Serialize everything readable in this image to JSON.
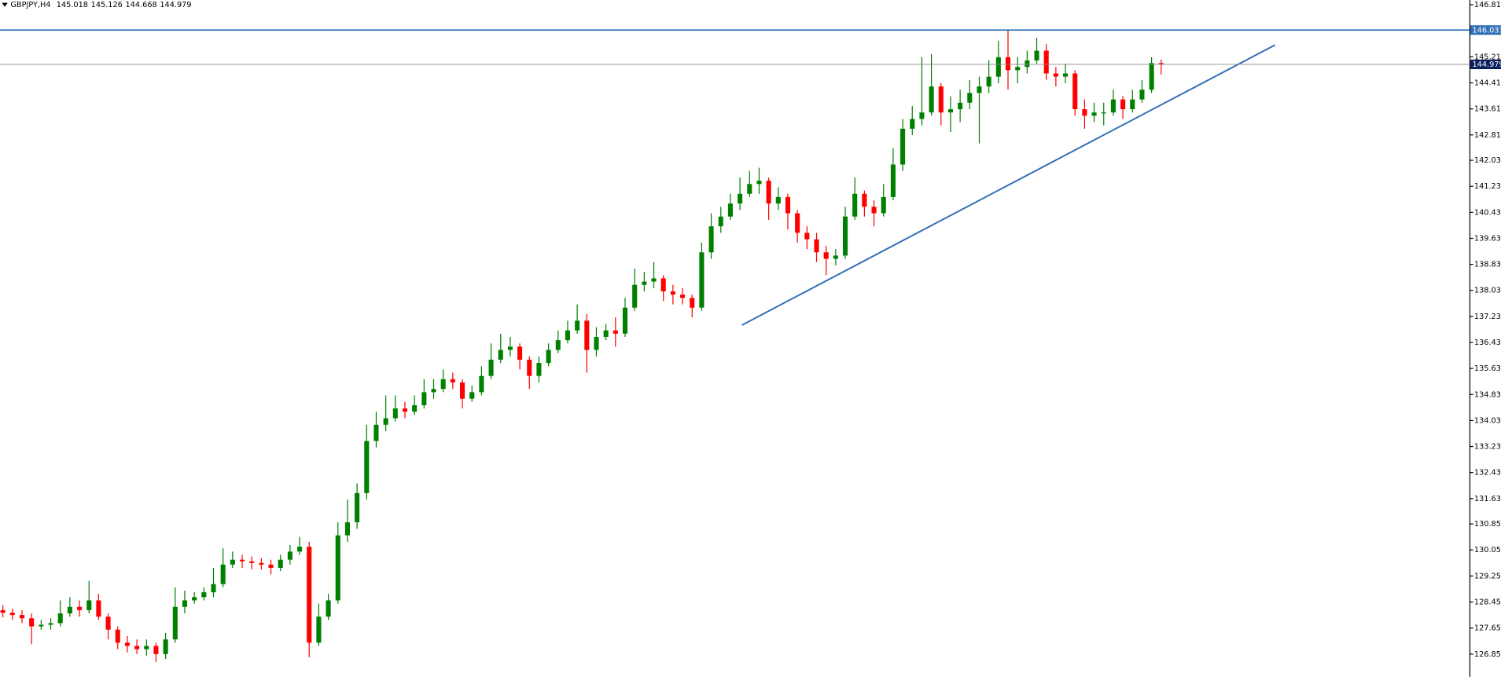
{
  "chart_data": {
    "type": "candlestick",
    "title": "GBPJPY,H4",
    "title_values": [
      145.018,
      145.126,
      144.668,
      144.979
    ],
    "up_color": "#008000",
    "down_color": "#ff0000",
    "ylim": [
      126.145,
      146.957
    ],
    "yticks": [
      {
        "value": 146.81,
        "label": "146.810"
      },
      {
        "value": 145.21,
        "label": "145.210"
      },
      {
        "value": 144.41,
        "label": "144.410"
      },
      {
        "value": 143.61,
        "label": "143.610"
      },
      {
        "value": 142.81,
        "label": "142.810"
      },
      {
        "value": 142.03,
        "label": "142.030"
      },
      {
        "value": 141.23,
        "label": "141.230"
      },
      {
        "value": 140.43,
        "label": "140.430"
      },
      {
        "value": 139.63,
        "label": "139.630"
      },
      {
        "value": 138.83,
        "label": "138.830"
      },
      {
        "value": 138.03,
        "label": "138.030"
      },
      {
        "value": 137.23,
        "label": "137.230"
      },
      {
        "value": 136.43,
        "label": "136.430"
      },
      {
        "value": 135.63,
        "label": "135.630"
      },
      {
        "value": 134.83,
        "label": "134.830"
      },
      {
        "value": 134.03,
        "label": "134.030"
      },
      {
        "value": 133.23,
        "label": "133.230"
      },
      {
        "value": 132.43,
        "label": "132.430"
      },
      {
        "value": 131.63,
        "label": "131.630"
      },
      {
        "value": 130.85,
        "label": "130.850"
      },
      {
        "value": 130.05,
        "label": "130.050"
      },
      {
        "value": 129.25,
        "label": "129.250"
      },
      {
        "value": 128.45,
        "label": "128.450"
      },
      {
        "value": 127.65,
        "label": "127.650"
      },
      {
        "value": 126.85,
        "label": "126.850"
      }
    ],
    "hline": {
      "value": 146.033,
      "color": "#2f6fb5"
    },
    "current_price": 144.979,
    "open": [
      128.2,
      128.12,
      128.05,
      127.95,
      127.7,
      127.75,
      127.8,
      128.1,
      128.3,
      128.2,
      128.5,
      128.0,
      127.6,
      127.2,
      127.1,
      127.0,
      127.1,
      126.85,
      127.3,
      128.3,
      128.5,
      128.6,
      128.75,
      129.0,
      129.6,
      129.75,
      129.7,
      129.65,
      129.6,
      129.5,
      129.75,
      130.0,
      130.15,
      127.2,
      128.0,
      128.5,
      130.5,
      130.9,
      131.8,
      133.4,
      133.9,
      134.1,
      134.4,
      134.3,
      134.5,
      134.9,
      135.0,
      135.3,
      135.2,
      134.7,
      134.9,
      135.4,
      135.9,
      136.2,
      136.3,
      135.9,
      135.4,
      135.8,
      136.2,
      136.5,
      136.8,
      137.1,
      136.2,
      136.6,
      136.8,
      136.7,
      137.5,
      138.2,
      138.3,
      138.4,
      138.0,
      137.9,
      137.8,
      137.5,
      139.2,
      140.0,
      140.3,
      140.7,
      141.0,
      141.3,
      141.4,
      140.7,
      140.9,
      140.4,
      139.8,
      139.6,
      139.2,
      139.0,
      139.1,
      140.3,
      141.0,
      140.6,
      140.4,
      140.9,
      141.9,
      143.0,
      143.3,
      143.5,
      144.3,
      143.5,
      143.6,
      143.8,
      144.1,
      144.3,
      144.6,
      145.2,
      144.8,
      144.9,
      145.1,
      145.4,
      144.7,
      144.6,
      144.7,
      143.6,
      143.4,
      143.5,
      143.5,
      143.9,
      143.6,
      143.9,
      144.2,
      145.018
    ],
    "high": [
      128.35,
      128.25,
      128.2,
      128.1,
      127.9,
      127.95,
      128.5,
      128.6,
      128.5,
      129.1,
      128.7,
      128.1,
      127.7,
      127.4,
      127.3,
      127.3,
      127.2,
      127.5,
      128.9,
      128.8,
      128.75,
      128.9,
      129.5,
      130.1,
      130.0,
      129.9,
      129.85,
      129.8,
      129.75,
      129.9,
      130.2,
      130.45,
      130.3,
      128.4,
      128.7,
      130.9,
      131.6,
      132.1,
      133.9,
      134.3,
      134.8,
      134.8,
      134.6,
      134.8,
      135.3,
      135.3,
      135.6,
      135.5,
      135.3,
      135.1,
      135.7,
      136.4,
      136.7,
      136.6,
      136.4,
      136.0,
      136.0,
      136.4,
      136.8,
      137.1,
      137.6,
      137.3,
      136.9,
      137.0,
      137.2,
      137.8,
      138.7,
      138.6,
      138.9,
      138.5,
      138.2,
      138.1,
      137.9,
      139.5,
      140.4,
      140.6,
      141.0,
      141.5,
      141.7,
      141.8,
      141.5,
      141.2,
      141.0,
      140.5,
      140.0,
      139.8,
      139.4,
      139.3,
      140.6,
      141.5,
      141.1,
      140.8,
      141.3,
      142.4,
      143.3,
      143.7,
      145.2,
      145.3,
      144.4,
      144.0,
      144.2,
      144.5,
      144.6,
      145.1,
      145.7,
      146.03,
      145.2,
      145.4,
      145.8,
      145.6,
      144.9,
      145.0,
      144.8,
      143.9,
      143.8,
      143.8,
      144.2,
      144.0,
      144.2,
      144.5,
      145.2,
      145.126
    ],
    "low": [
      127.98,
      127.9,
      127.8,
      127.15,
      127.6,
      127.6,
      127.7,
      128.0,
      128.0,
      128.1,
      127.9,
      127.3,
      127.0,
      126.9,
      126.85,
      126.8,
      126.6,
      126.7,
      127.2,
      128.1,
      128.4,
      128.5,
      128.6,
      128.9,
      129.5,
      129.5,
      129.45,
      129.45,
      129.3,
      129.4,
      129.6,
      129.9,
      126.75,
      127.1,
      127.9,
      128.4,
      130.3,
      130.7,
      131.6,
      133.2,
      133.7,
      134.0,
      134.1,
      134.2,
      134.4,
      134.7,
      134.9,
      135.0,
      134.4,
      134.6,
      134.8,
      135.3,
      135.8,
      136.0,
      135.6,
      135.0,
      135.2,
      135.7,
      136.1,
      136.4,
      136.7,
      135.5,
      136.0,
      136.5,
      136.3,
      136.6,
      137.4,
      138.0,
      138.1,
      137.7,
      137.6,
      137.6,
      137.2,
      137.4,
      139.0,
      139.8,
      140.2,
      140.5,
      140.9,
      141.0,
      140.2,
      140.5,
      139.9,
      139.5,
      139.3,
      138.9,
      138.5,
      138.8,
      139.0,
      140.2,
      140.3,
      140.0,
      140.3,
      140.8,
      141.7,
      142.8,
      143.1,
      143.4,
      143.1,
      142.9,
      143.2,
      143.6,
      142.55,
      144.1,
      144.4,
      144.2,
      144.4,
      144.7,
      145.0,
      144.5,
      144.3,
      144.4,
      143.4,
      143.0,
      143.2,
      143.1,
      143.4,
      143.3,
      143.5,
      143.8,
      144.1,
      144.668
    ],
    "close": [
      128.12,
      128.05,
      127.95,
      127.7,
      127.75,
      127.8,
      128.1,
      128.3,
      128.2,
      128.5,
      128.0,
      127.6,
      127.2,
      127.1,
      127.0,
      127.1,
      126.85,
      127.3,
      128.3,
      128.5,
      128.6,
      128.75,
      129.0,
      129.6,
      129.75,
      129.7,
      129.65,
      129.6,
      129.5,
      129.75,
      130.0,
      130.15,
      127.2,
      128.0,
      128.5,
      130.5,
      130.9,
      131.8,
      133.4,
      133.9,
      134.1,
      134.4,
      134.3,
      134.5,
      134.9,
      135.0,
      135.3,
      135.2,
      134.7,
      134.9,
      135.4,
      135.9,
      136.2,
      136.3,
      135.9,
      135.4,
      135.8,
      136.2,
      136.5,
      136.8,
      137.1,
      136.2,
      136.6,
      136.8,
      136.7,
      137.5,
      138.2,
      138.3,
      138.4,
      138.0,
      137.9,
      137.8,
      137.5,
      139.2,
      140.0,
      140.3,
      140.7,
      141.0,
      141.3,
      141.4,
      140.7,
      140.9,
      140.4,
      139.8,
      139.6,
      139.2,
      139.0,
      139.1,
      140.3,
      141.0,
      140.6,
      140.4,
      140.9,
      141.9,
      143.0,
      143.3,
      143.5,
      144.3,
      143.5,
      143.6,
      143.8,
      144.1,
      144.3,
      144.6,
      145.2,
      144.8,
      144.9,
      145.1,
      145.4,
      144.7,
      144.6,
      144.7,
      143.6,
      143.4,
      143.5,
      143.5,
      143.9,
      143.6,
      143.9,
      144.2,
      145.018,
      144.979
    ]
  }
}
